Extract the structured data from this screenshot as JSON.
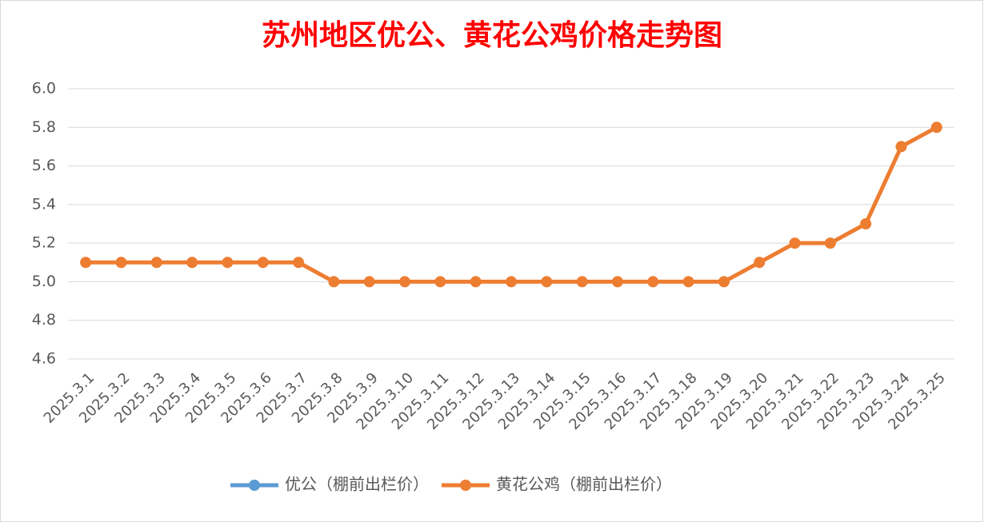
{
  "chart_data": {
    "type": "line",
    "title": "苏州地区优公、黄花公鸡价格走势图",
    "categories": [
      "2025.3.1",
      "2025.3.2",
      "2025.3.3",
      "2025.3.4",
      "2025.3.5",
      "2025.3.6",
      "2025.3.7",
      "2025.3.8",
      "2025.3.9",
      "2025.3.10",
      "2025.3.11",
      "2025.3.12",
      "2025.3.13",
      "2025.3.14",
      "2025.3.15",
      "2025.3.16",
      "2025.3.17",
      "2025.3.18",
      "2025.3.19",
      "2025.3.20",
      "2025.3.21",
      "2025.3.22",
      "2025.3.23",
      "2025.3.24",
      "2025.3.25"
    ],
    "series": [
      {
        "name": "优公（棚前出栏价）",
        "color": "#5b9bd5",
        "values": [
          null,
          null,
          null,
          null,
          null,
          null,
          null,
          null,
          null,
          null,
          null,
          null,
          null,
          null,
          null,
          null,
          null,
          null,
          null,
          null,
          null,
          null,
          null,
          null,
          null
        ]
      },
      {
        "name": "黄花公鸡（棚前出栏价）",
        "color": "#ed7d31",
        "values": [
          5.1,
          5.1,
          5.1,
          5.1,
          5.1,
          5.1,
          5.1,
          5.0,
          5.0,
          5.0,
          5.0,
          5.0,
          5.0,
          5.0,
          5.0,
          5.0,
          5.0,
          5.0,
          5.0,
          5.1,
          5.2,
          5.2,
          5.3,
          5.7,
          5.8
        ]
      }
    ],
    "ylim": [
      4.6,
      6.0
    ],
    "yticks": [
      {
        "value": 4.6,
        "label": "4.6"
      },
      {
        "value": 4.8,
        "label": "4.8"
      },
      {
        "value": 5.0,
        "label": "5.0"
      },
      {
        "value": 5.2,
        "label": "5.2"
      },
      {
        "value": 5.4,
        "label": "5.4"
      },
      {
        "value": 5.6,
        "label": "5.6"
      },
      {
        "value": 5.8,
        "label": "5.8"
      },
      {
        "value": 6.0,
        "label": "6.0"
      }
    ],
    "grid": true,
    "legend": "bottom"
  }
}
